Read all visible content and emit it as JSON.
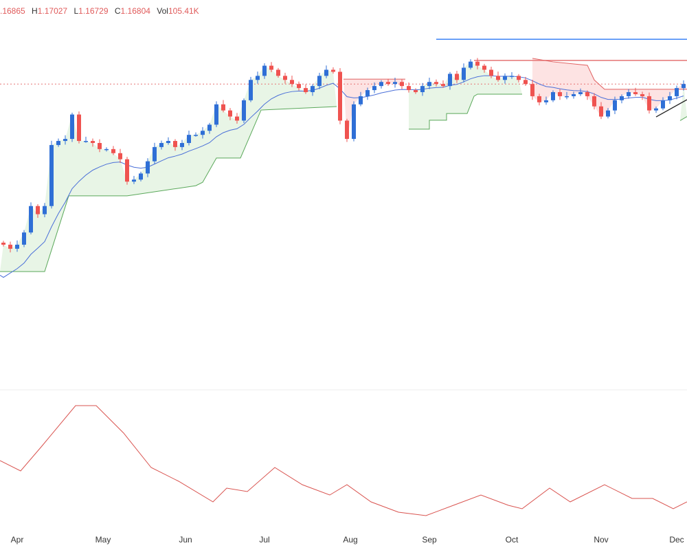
{
  "legend": {
    "open": ".16865",
    "high_label": "H",
    "high": "1.17027",
    "low_label": "L",
    "low": "1.16729",
    "close_label": "C",
    "close": "1.16804",
    "vol_label": "Vol",
    "vol": "105.41K"
  },
  "colors": {
    "up": "#2f6fd6",
    "down": "#ef5350",
    "ma": "#4a6fd8",
    "support": "#5aa85a",
    "resistance": "#e06060",
    "support_fill": "#e8f5e6",
    "resistance_fill": "#fde3e3",
    "oscillator": "#d9534f",
    "level_blue": "#3b82f6",
    "level_red": "#e57373"
  },
  "chart_data": {
    "type": "candlestick",
    "x_ticks": [
      {
        "label": "Apr",
        "index": 2
      },
      {
        "label": "May",
        "index": 14.5
      },
      {
        "label": "Jun",
        "index": 26.5
      },
      {
        "label": "Jul",
        "index": 38
      },
      {
        "label": "Aug",
        "index": 50.5
      },
      {
        "label": "Sep",
        "index": 62
      },
      {
        "label": "Oct",
        "index": 74
      },
      {
        "label": "Nov",
        "index": 87
      },
      {
        "label": "Dec",
        "index": 98
      }
    ],
    "first_open": 1.09,
    "closes": [
      1.089,
      1.087,
      1.089,
      1.095,
      1.108,
      1.104,
      1.108,
      1.138,
      1.14,
      1.141,
      1.153,
      1.14,
      1.14,
      1.139,
      1.136,
      1.136,
      1.134,
      1.131,
      1.12,
      1.121,
      1.124,
      1.13,
      1.137,
      1.139,
      1.14,
      1.137,
      1.139,
      1.143,
      1.143,
      1.145,
      1.148,
      1.158,
      1.155,
      1.152,
      1.15,
      1.16,
      1.17,
      1.172,
      1.177,
      1.175,
      1.172,
      1.17,
      1.168,
      1.166,
      1.164,
      1.167,
      1.172,
      1.175,
      1.174,
      1.15,
      1.141,
      1.158,
      1.162,
      1.165,
      1.167,
      1.169,
      1.168,
      1.169,
      1.167,
      1.165,
      1.164,
      1.167,
      1.169,
      1.168,
      1.167,
      1.173,
      1.17,
      1.176,
      1.179,
      1.177,
      1.175,
      1.172,
      1.17,
      1.172,
      1.172,
      1.17,
      1.168,
      1.162,
      1.159,
      1.16,
      1.164,
      1.162,
      1.162,
      1.163,
      1.164,
      1.162,
      1.157,
      1.152,
      1.155,
      1.16,
      1.162,
      1.164,
      1.163,
      1.162,
      1.155,
      1.156,
      1.16,
      1.162,
      1.166,
      1.168
    ],
    "current_price": 1.168,
    "levels": [
      {
        "price": 1.19,
        "from": 63,
        "color": "level_blue"
      },
      {
        "price": 1.1796,
        "from": 68.5,
        "color": "level_red"
      }
    ],
    "support_lines": [
      [
        [
          -0.5,
          1.0758
        ],
        [
          6,
          1.0758
        ],
        [
          9.5,
          1.113
        ],
        [
          18,
          1.113
        ],
        [
          28,
          1.118
        ],
        [
          29,
          1.1197
        ],
        [
          31,
          1.1316
        ],
        [
          34.5,
          1.1316
        ],
        [
          37.5,
          1.1552
        ],
        [
          48.5,
          1.1569
        ]
      ],
      [
        [
          59,
          1.1458
        ],
        [
          62,
          1.1458
        ],
        [
          62,
          1.1502
        ],
        [
          64.5,
          1.1502
        ],
        [
          64.5,
          1.1535
        ],
        [
          67.5,
          1.1535
        ],
        [
          68.5,
          1.162
        ],
        [
          69,
          1.163
        ],
        [
          75.5,
          1.163
        ]
      ],
      [
        [
          98.5,
          1.15
        ],
        [
          99.5,
          1.152
        ]
      ]
    ],
    "resistance_lines": [
      [
        [
          49.5,
          1.1704
        ],
        [
          58.5,
          1.1704
        ]
      ],
      [
        [
          77,
          1.1806
        ],
        [
          80,
          1.1789
        ],
        [
          85,
          1.1772
        ],
        [
          86,
          1.17
        ],
        [
          87.5,
          1.1654
        ],
        [
          99.5,
          1.1654
        ]
      ]
    ],
    "trendline": [
      [
        95,
        1.1518
      ],
      [
        99.5,
        1.1603
      ]
    ],
    "oscillator": [
      [
        -0.5,
        60
      ],
      [
        2.5,
        52.5
      ],
      [
        5.5,
        70
      ],
      [
        10.5,
        100
      ],
      [
        13.5,
        100
      ],
      [
        17.5,
        80
      ],
      [
        21.5,
        55
      ],
      [
        25.5,
        45
      ],
      [
        30.5,
        30
      ],
      [
        32.5,
        40
      ],
      [
        35.5,
        37.5
      ],
      [
        39.5,
        55
      ],
      [
        43.5,
        42.5
      ],
      [
        47.5,
        35
      ],
      [
        50,
        42.5
      ],
      [
        53.5,
        30
      ],
      [
        57.5,
        22.5
      ],
      [
        61.5,
        20
      ],
      [
        65.5,
        27.5
      ],
      [
        69.5,
        35
      ],
      [
        73.5,
        27.5
      ],
      [
        75.5,
        25
      ],
      [
        79.5,
        40
      ],
      [
        82.5,
        30
      ],
      [
        87.5,
        42.5
      ],
      [
        91.5,
        32.5
      ],
      [
        94.5,
        32.5
      ],
      [
        97.5,
        25
      ],
      [
        99.5,
        30
      ]
    ]
  }
}
